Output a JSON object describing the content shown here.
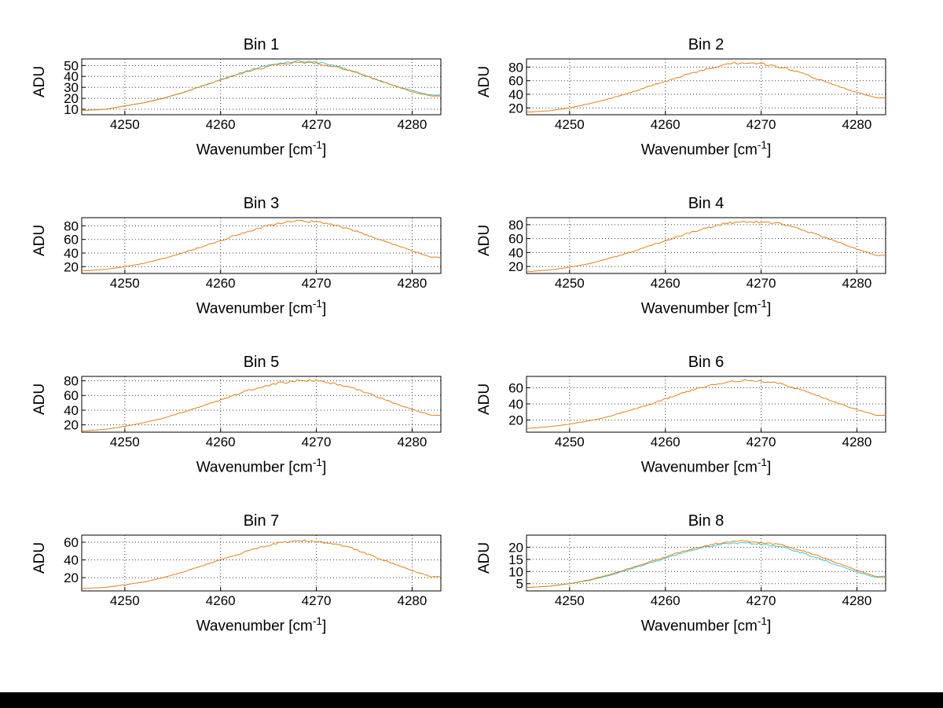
{
  "page": {
    "background": "#ffffff",
    "bottom_bar_color": "#000000"
  },
  "colors": {
    "series_orange": "#e08214",
    "series_teal": "#45c5c5",
    "axis": "#000000",
    "grid": "#3a3a3a"
  },
  "chart_data": [
    {
      "type": "line",
      "title": "Bin 1",
      "ylabel": "ADU",
      "xlabel_pre": "Wavenumber [cm",
      "xlabel_sup": "-1",
      "xlabel_post": "]",
      "xlim": [
        4245.5,
        4283
      ],
      "ylim": [
        5,
        56
      ],
      "xticks": [
        4250,
        4260,
        4270,
        4280
      ],
      "yticks": [
        10,
        20,
        30,
        40,
        50
      ],
      "grid": true,
      "x": [
        4246,
        4248,
        4250,
        4252,
        4254,
        4256,
        4258,
        4260,
        4262,
        4264,
        4266,
        4268,
        4270,
        4272,
        4274,
        4276,
        4278,
        4280,
        4282
      ],
      "series": [
        {
          "name": "curve-teal",
          "color": "#45c5c5",
          "noise": 0.8,
          "values": [
            9,
            10,
            13,
            16,
            20,
            25,
            31,
            37,
            43,
            48,
            52,
            54,
            53,
            50,
            44,
            38,
            32,
            27,
            23
          ]
        },
        {
          "name": "curve-orange",
          "color": "#e08214",
          "noise": 1.0,
          "values": [
            9,
            10,
            13,
            16,
            20,
            25,
            31,
            37,
            42,
            47,
            51,
            53,
            52,
            49,
            44,
            38,
            32,
            26,
            22
          ]
        }
      ]
    },
    {
      "type": "line",
      "title": "Bin 2",
      "ylabel": "ADU",
      "xlabel_pre": "Wavenumber [cm",
      "xlabel_sup": "-1",
      "xlabel_post": "]",
      "xlim": [
        4245.5,
        4283
      ],
      "ylim": [
        10,
        92
      ],
      "xticks": [
        4250,
        4260,
        4270,
        4280
      ],
      "yticks": [
        20,
        40,
        60,
        80
      ],
      "grid": true,
      "x": [
        4246,
        4248,
        4250,
        4252,
        4254,
        4256,
        4258,
        4260,
        4262,
        4264,
        4266,
        4268,
        4270,
        4272,
        4274,
        4276,
        4278,
        4280,
        4282
      ],
      "series": [
        {
          "name": "curve-orange",
          "color": "#e08214",
          "noise": 1.8,
          "values": [
            14,
            16,
            20,
            26,
            33,
            41,
            50,
            59,
            68,
            76,
            83,
            87,
            85,
            80,
            72,
            62,
            52,
            43,
            35
          ]
        }
      ]
    },
    {
      "type": "line",
      "title": "Bin 3",
      "ylabel": "ADU",
      "xlabel_pre": "Wavenumber [cm",
      "xlabel_sup": "-1",
      "xlabel_post": "]",
      "xlim": [
        4245.5,
        4283
      ],
      "ylim": [
        10,
        92
      ],
      "xticks": [
        4250,
        4260,
        4270,
        4280
      ],
      "yticks": [
        20,
        40,
        60,
        80
      ],
      "grid": true,
      "x": [
        4246,
        4248,
        4250,
        4252,
        4254,
        4256,
        4258,
        4260,
        4262,
        4264,
        4266,
        4268,
        4270,
        4272,
        4274,
        4276,
        4278,
        4280,
        4282
      ],
      "series": [
        {
          "name": "curve-orange",
          "color": "#e08214",
          "noise": 1.8,
          "values": [
            14,
            16,
            20,
            25,
            32,
            40,
            49,
            58,
            68,
            77,
            84,
            87,
            86,
            81,
            73,
            63,
            53,
            43,
            34
          ]
        }
      ]
    },
    {
      "type": "line",
      "title": "Bin 4",
      "ylabel": "ADU",
      "xlabel_pre": "Wavenumber [cm",
      "xlabel_sup": "-1",
      "xlabel_post": "]",
      "xlim": [
        4245.5,
        4283
      ],
      "ylim": [
        10,
        90
      ],
      "xticks": [
        4250,
        4260,
        4270,
        4280
      ],
      "yticks": [
        20,
        40,
        60,
        80
      ],
      "grid": true,
      "x": [
        4246,
        4248,
        4250,
        4252,
        4254,
        4256,
        4258,
        4260,
        4262,
        4264,
        4266,
        4268,
        4270,
        4272,
        4274,
        4276,
        4278,
        4280,
        4282
      ],
      "series": [
        {
          "name": "curve-orange",
          "color": "#e08214",
          "noise": 1.8,
          "values": [
            13,
            15,
            19,
            24,
            31,
            39,
            48,
            57,
            66,
            74,
            81,
            84,
            84,
            81,
            74,
            65,
            55,
            45,
            36
          ]
        }
      ]
    },
    {
      "type": "line",
      "title": "Bin 5",
      "ylabel": "ADU",
      "xlabel_pre": "Wavenumber [cm",
      "xlabel_sup": "-1",
      "xlabel_post": "]",
      "xlim": [
        4245.5,
        4283
      ],
      "ylim": [
        10,
        86
      ],
      "xticks": [
        4250,
        4260,
        4270,
        4280
      ],
      "yticks": [
        20,
        40,
        60,
        80
      ],
      "grid": true,
      "x": [
        4246,
        4248,
        4250,
        4252,
        4254,
        4256,
        4258,
        4260,
        4262,
        4264,
        4266,
        4268,
        4270,
        4272,
        4274,
        4276,
        4278,
        4280,
        4282
      ],
      "series": [
        {
          "name": "curve-orange",
          "color": "#e08214",
          "noise": 1.7,
          "values": [
            12,
            14,
            18,
            23,
            29,
            37,
            45,
            54,
            63,
            71,
            77,
            80,
            80,
            76,
            69,
            60,
            50,
            41,
            33
          ]
        }
      ]
    },
    {
      "type": "line",
      "title": "Bin 6",
      "ylabel": "ADU",
      "xlabel_pre": "Wavenumber [cm",
      "xlabel_sup": "-1",
      "xlabel_post": "]",
      "xlim": [
        4245.5,
        4283
      ],
      "ylim": [
        5,
        74
      ],
      "xticks": [
        4250,
        4260,
        4270,
        4280
      ],
      "yticks": [
        20,
        40,
        60
      ],
      "grid": true,
      "x": [
        4246,
        4248,
        4250,
        4252,
        4254,
        4256,
        4258,
        4260,
        4262,
        4264,
        4266,
        4268,
        4270,
        4272,
        4274,
        4276,
        4278,
        4280,
        4282
      ],
      "series": [
        {
          "name": "curve-orange",
          "color": "#e08214",
          "noise": 1.5,
          "values": [
            10,
            12,
            15,
            19,
            24,
            31,
            38,
            46,
            54,
            61,
            66,
            69,
            68,
            65,
            58,
            50,
            41,
            33,
            26
          ]
        }
      ]
    },
    {
      "type": "line",
      "title": "Bin 7",
      "ylabel": "ADU",
      "xlabel_pre": "Wavenumber [cm",
      "xlabel_sup": "-1",
      "xlabel_post": "]",
      "xlim": [
        4245.5,
        4283
      ],
      "ylim": [
        5,
        68
      ],
      "xticks": [
        4250,
        4260,
        4270,
        4280
      ],
      "yticks": [
        20,
        40,
        60
      ],
      "grid": true,
      "x": [
        4246,
        4248,
        4250,
        4252,
        4254,
        4256,
        4258,
        4260,
        4262,
        4264,
        4266,
        4268,
        4270,
        4272,
        4274,
        4276,
        4278,
        4280,
        4282
      ],
      "series": [
        {
          "name": "curve-orange",
          "color": "#e08214",
          "noise": 1.4,
          "values": [
            8,
            9,
            12,
            15,
            20,
            26,
            33,
            40,
            47,
            54,
            59,
            62,
            61,
            58,
            52,
            44,
            36,
            28,
            21
          ]
        }
      ]
    },
    {
      "type": "line",
      "title": "Bin 8",
      "ylabel": "ADU",
      "xlabel_pre": "Wavenumber [cm",
      "xlabel_sup": "-1",
      "xlabel_post": "]",
      "xlim": [
        4245.5,
        4283
      ],
      "ylim": [
        2,
        25
      ],
      "xticks": [
        4250,
        4260,
        4270,
        4280
      ],
      "yticks": [
        5,
        10,
        15,
        20
      ],
      "grid": true,
      "x": [
        4246,
        4248,
        4250,
        4252,
        4254,
        4256,
        4258,
        4260,
        4262,
        4264,
        4266,
        4268,
        4270,
        4272,
        4274,
        4276,
        4278,
        4280,
        4282
      ],
      "series": [
        {
          "name": "curve-teal",
          "color": "#45c5c5",
          "noise": 0.4,
          "values": [
            3.5,
            4,
            5,
            6.3,
            8.2,
            10.6,
            13,
            15.5,
            18,
            20,
            21.3,
            21.8,
            21.3,
            20.2,
            18,
            15.5,
            12.5,
            9.8,
            7.5
          ]
        },
        {
          "name": "curve-orange",
          "color": "#e08214",
          "noise": 0.45,
          "values": [
            3.5,
            4,
            5,
            6.5,
            8.5,
            11,
            13.5,
            16,
            18.5,
            20.5,
            22,
            22.5,
            22,
            21,
            19,
            16.5,
            13.5,
            10.5,
            8
          ]
        }
      ]
    }
  ]
}
